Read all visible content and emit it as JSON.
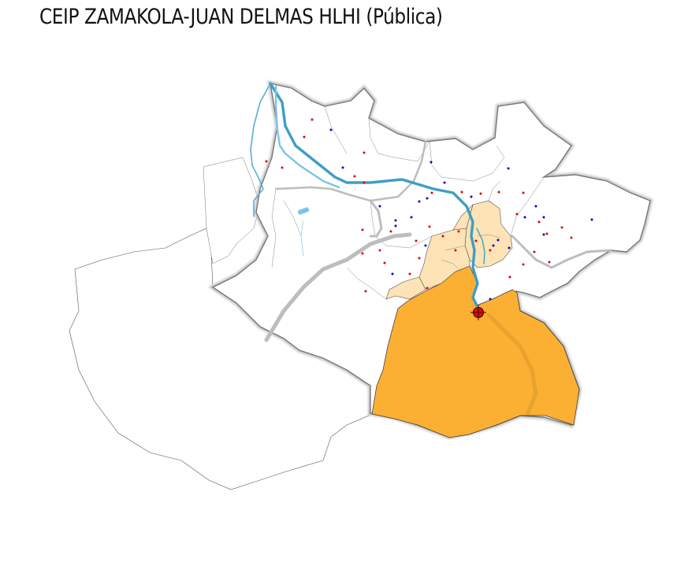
{
  "title": "CEIP ZAMAKOLA-JUAN DELMAS HLHI (Pública)",
  "colors": {
    "selected_district": "#FBB034",
    "neighbour_district": "#FDE3B5",
    "river": "#4BA3C7",
    "main_road": "#BDBDBD",
    "public_school": "#E00000",
    "private_school": "#0000CC",
    "school_marker": "#FF0000"
  }
}
